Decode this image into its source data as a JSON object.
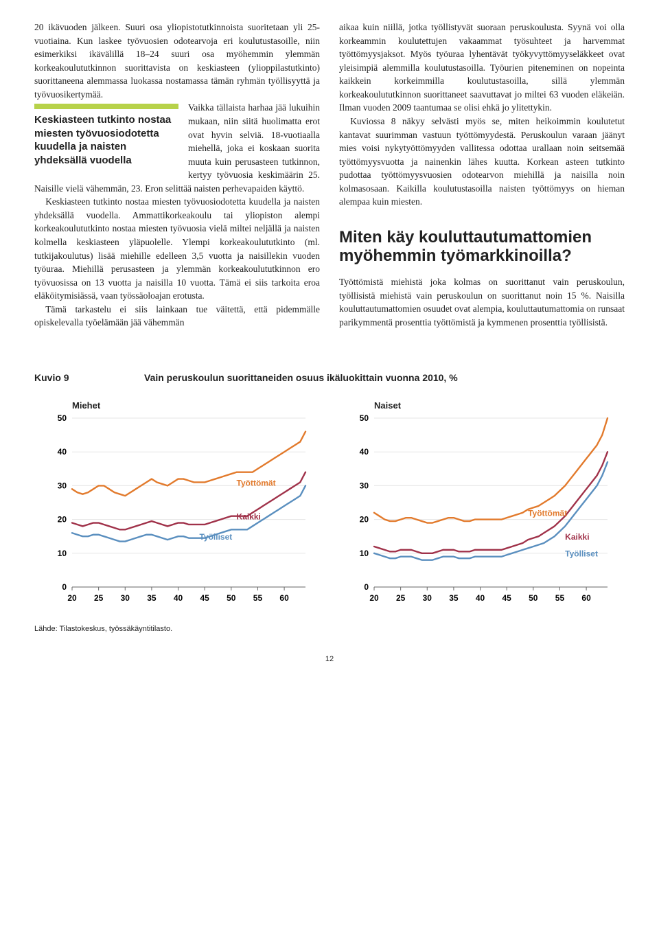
{
  "left_col": {
    "p1": "20 ikävuoden jälkeen. Suuri osa yliopistotutkinnoista suoritetaan yli 25-vuotiaina. Kun laskee työvuosien odotearvoja eri koulutustasoille, niin esimerkiksi ikävälillä 18–24 suuri osa myöhemmin ylemmän korkeakoulututkinnon suorittavista on keskiasteen (ylioppilastutkinto) suorittaneena alemmassa luokassa nostamassa tämän ryhmän työllisyyttä ja työvuosikertymää.",
    "p1b": "Vaikka tällaista harhaa jää lukuihin mukaan, niin siitä huolimatta erot ovat hyvin selviä. 18-vuotiaalla miehellä, joka ei koskaan suorita muuta kuin perusasteen tutkinnon, kertyy työvuosia keskimäärin 25. Naisille vielä vähemmän, 23. Eron selittää naisten perhevapaiden käyttö.",
    "p2": "Keskiasteen tutkinto nostaa miesten työvuosiodotetta kuudella ja naisten yhdeksällä vuodella. Ammattikorkeakoulu tai yliopiston alempi korkeakoulututkinto nostaa miesten työvuosia vielä miltei neljällä ja naisten kolmella keskiasteen yläpuolelle. Ylempi korkeakoulututkinto (ml. tutkijakoulutus) lisää miehille edelleen 3,5 vuotta ja naisillekin vuoden työuraa. Miehillä perusasteen ja ylemmän korkeakoulututkinnon ero työvuosissa on 13 vuotta ja naisilla 10 vuotta. Tämä ei siis tarkoita eroa eläköitymisiässä, vaan työssäoloajan erotusta.",
    "p3": "Tämä tarkastelu ei siis lainkaan tue väitettä, että pidemmälle opiskelevalla työelämään jää vähemmän",
    "pullquote": "Keskiasteen tutkinto nostaa miesten työvuosiodotetta kuudella ja naisten yhdeksällä vuodella"
  },
  "right_col": {
    "p1": "aikaa kuin niillä, jotka työllistyvät suoraan peruskoulusta. Syynä voi olla korkeammin koulutettujen vakaammat työsuhteet ja harvemmat työttömyysjaksot. Myös työuraa lyhentävät työkyvyttömyyseläkkeet ovat yleisimpiä alemmilla koulutustasoilla. Työurien piteneminen on nopeinta kaikkein korkeimmilla koulutustasoilla, sillä ylemmän korkeakoulututkinnon suorittaneet saavuttavat jo miltei 63 vuoden eläkeiän. Ilman vuoden 2009 taantumaa se olisi ehkä jo ylitettykin.",
    "p2": "Kuviossa 8 näkyy selvästi myös se, miten heikoimmin koulutetut kantavat suurimman vastuun työttömyydestä. Peruskoulun varaan jäänyt mies voisi nykytyöttömyyden vallitessa odottaa urallaan noin seitsemää työttömyysvuotta ja nainenkin lähes kuutta. Korkean asteen tutkinto pudottaa työttömyysvuosien odotearvon miehillä ja naisilla noin kolmasosaan. Kaikilla koulutustasoilla naisten työttömyys on hieman alempaa kuin miesten.",
    "heading": "Miten käy kouluttautumattomien myöhemmin työmarkkinoilla?",
    "p3": "Työttömistä miehistä joka kolmas on suorittanut vain peruskoulun, työllisistä miehistä vain peruskoulun on suorittanut noin 15 %. Naisilla kouluttautumattomien osuudet ovat alempia, kouluttautumattomia on runsaat parikymmentä prosenttia työttömistä ja kymmenen prosenttia työllisistä."
  },
  "figure": {
    "label": "Kuvio 9",
    "title": "Vain peruskoulun suorittaneiden osuus ikäluokittain vuonna 2010, %",
    "source": "Lähde: Tilastokeskus, työssäkäyntitilasto.",
    "pagenum": "12",
    "x_ticks": [
      20,
      25,
      30,
      35,
      40,
      45,
      50,
      55,
      60
    ],
    "y_ticks": [
      0,
      10,
      20,
      30,
      40,
      50
    ],
    "ylim": [
      0,
      50
    ],
    "xlim": [
      20,
      64
    ],
    "grid_color": "#e5e5e5",
    "axis_color": "#666",
    "tick_fontsize": 12,
    "label_fontsize": 12,
    "series_labels": {
      "tyottomat": "Työttömät",
      "kaikki": "Kaikki",
      "tyolliset": "Työlliset"
    },
    "colors": {
      "tyottomat": "#e27a2c",
      "kaikki": "#a0324a",
      "tyolliset": "#5a8fbf"
    },
    "line_width": 2.4,
    "miehet": {
      "title": "Miehet",
      "tyottomat": [
        29,
        28,
        27.5,
        28,
        29,
        30,
        30,
        29,
        28,
        27.5,
        27,
        28,
        29,
        30,
        31,
        32,
        31,
        30.5,
        30,
        31,
        32,
        32,
        31.5,
        31,
        31,
        31,
        31.5,
        32,
        32.5,
        33,
        33.5,
        34,
        34,
        34,
        34,
        35,
        36,
        37,
        38,
        39,
        40,
        41,
        42,
        43,
        46
      ],
      "kaikki": [
        19,
        18.5,
        18,
        18.5,
        19,
        19,
        18.5,
        18,
        17.5,
        17,
        17,
        17.5,
        18,
        18.5,
        19,
        19.5,
        19,
        18.5,
        18,
        18.5,
        19,
        19,
        18.5,
        18.5,
        18.5,
        18.5,
        19,
        19.5,
        20,
        20.5,
        21,
        21,
        21,
        21,
        22,
        23,
        24,
        25,
        26,
        27,
        28,
        29,
        30,
        31,
        34
      ],
      "tyolliset": [
        16,
        15.5,
        15,
        15,
        15.5,
        15.5,
        15,
        14.5,
        14,
        13.5,
        13.5,
        14,
        14.5,
        15,
        15.5,
        15.5,
        15,
        14.5,
        14,
        14.5,
        15,
        15,
        14.5,
        14.5,
        14.5,
        14.5,
        15,
        15.5,
        16,
        16.5,
        17,
        17,
        17,
        17,
        18,
        19,
        20,
        21,
        22,
        23,
        24,
        25,
        26,
        27,
        30
      ],
      "label_pos": {
        "tyottomat": [
          51,
          30
        ],
        "kaikki": [
          51,
          20
        ],
        "tyolliset": [
          44,
          14
        ]
      }
    },
    "naiset": {
      "title": "Naiset",
      "tyottomat": [
        22,
        21,
        20,
        19.5,
        19.5,
        20,
        20.5,
        20.5,
        20,
        19.5,
        19,
        19,
        19.5,
        20,
        20.5,
        20.5,
        20,
        19.5,
        19.5,
        20,
        20,
        20,
        20,
        20,
        20,
        20.5,
        21,
        21.5,
        22,
        23,
        23.5,
        24,
        25,
        26,
        27,
        28.5,
        30,
        32,
        34,
        36,
        38,
        40,
        42,
        45,
        50
      ],
      "kaikki": [
        12,
        11.5,
        11,
        10.5,
        10.5,
        11,
        11,
        11,
        10.5,
        10,
        10,
        10,
        10.5,
        11,
        11,
        11,
        10.5,
        10.5,
        10.5,
        11,
        11,
        11,
        11,
        11,
        11,
        11.5,
        12,
        12.5,
        13,
        14,
        14.5,
        15,
        16,
        17,
        18,
        19.5,
        21,
        23,
        25,
        27,
        29,
        31,
        33,
        36,
        40
      ],
      "tyolliset": [
        10,
        9.5,
        9,
        8.5,
        8.5,
        9,
        9,
        9,
        8.5,
        8,
        8,
        8,
        8.5,
        9,
        9,
        9,
        8.5,
        8.5,
        8.5,
        9,
        9,
        9,
        9,
        9,
        9,
        9.5,
        10,
        10.5,
        11,
        11.5,
        12,
        12.5,
        13,
        14,
        15,
        16.5,
        18,
        20,
        22,
        24,
        26,
        28,
        30,
        33,
        37
      ],
      "label_pos": {
        "tyottomat": [
          49,
          21
        ],
        "kaikki": [
          56,
          14
        ],
        "tyolliset": [
          56,
          9
        ]
      }
    }
  }
}
